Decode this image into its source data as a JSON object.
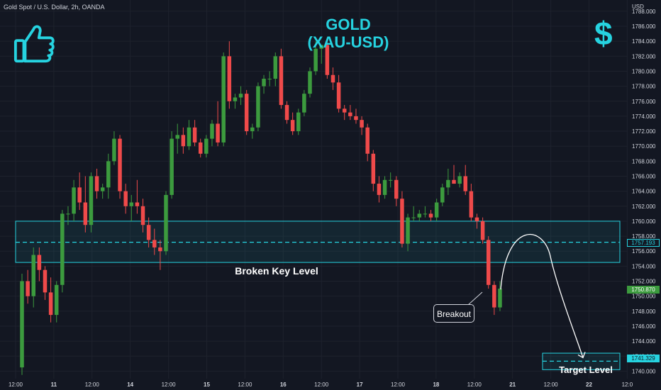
{
  "header": {
    "source": "Gold Spot / U.S. Dollar, 2h, OANDA",
    "currency": "USD"
  },
  "title": {
    "line1": "GOLD",
    "line2": "(XAU-USD)"
  },
  "icons": {
    "thumbs_up": "thumbs-up-icon",
    "dollar": "dollar-sign-icon",
    "dollar_glyph": "$"
  },
  "colors": {
    "up": "#3c9b3e",
    "down": "#ef4a4a",
    "accent": "#26d3e0",
    "background": "#131722",
    "grid": "#1e222d",
    "text": "#d1d4dc"
  },
  "annotations": {
    "broken_key_level": "Broken Key Level",
    "target_level": "Target Level",
    "breakout": "Breakout",
    "key_level_price": "1757.193",
    "last_price": "1750.870",
    "target_price": "1741.329"
  },
  "chart_data": {
    "type": "candlestick",
    "symbol": "XAU-USD",
    "timeframe": "2h",
    "ylim": [
      1739,
      1789.5
    ],
    "y_ticks": [
      1740,
      1742,
      1744,
      1746,
      1748,
      1750,
      1752,
      1754,
      1756,
      1758,
      1760,
      1762,
      1764,
      1766,
      1768,
      1770,
      1772,
      1774,
      1776,
      1778,
      1780,
      1782,
      1784,
      1786,
      1788
    ],
    "x_ticks": [
      "12:00",
      "11",
      "12:00",
      "14",
      "12:00",
      "15",
      "12:00",
      "16",
      "12:00",
      "17",
      "12:00",
      "18",
      "12:00",
      "21",
      "12:00",
      "22",
      "12:0"
    ],
    "zones": [
      {
        "name": "Broken Key Level",
        "low": 1754.5,
        "high": 1760.0,
        "midline": 1757.193
      },
      {
        "name": "Target Level",
        "low": 1740.2,
        "high": 1742.4,
        "midline": 1741.329
      }
    ],
    "projection": {
      "from_price": 1750.9,
      "peak_price": 1757.2,
      "to_price": 1741.8
    },
    "candles": [
      [
        1740.5,
        1753.0,
        1739.5,
        1752.0
      ],
      [
        1752.0,
        1753.5,
        1749.0,
        1750.0
      ],
      [
        1750.0,
        1756.5,
        1748.5,
        1755.5
      ],
      [
        1755.5,
        1756.5,
        1752.0,
        1753.5
      ],
      [
        1753.5,
        1754.0,
        1749.5,
        1750.5
      ],
      [
        1750.5,
        1752.5,
        1746.5,
        1747.5
      ],
      [
        1747.5,
        1752.0,
        1746.5,
        1751.5
      ],
      [
        1751.5,
        1761.5,
        1750.5,
        1761.0
      ],
      [
        1761.0,
        1762.0,
        1759.5,
        1761.0
      ],
      [
        1761.0,
        1765.5,
        1760.0,
        1764.5
      ],
      [
        1764.5,
        1766.5,
        1761.5,
        1762.5
      ],
      [
        1762.5,
        1766.0,
        1758.5,
        1759.5
      ],
      [
        1759.5,
        1766.5,
        1758.5,
        1766.0
      ],
      [
        1766.0,
        1767.0,
        1763.0,
        1764.0
      ],
      [
        1764.0,
        1765.0,
        1763.0,
        1764.5
      ],
      [
        1764.5,
        1769.0,
        1763.0,
        1768.0
      ],
      [
        1768.0,
        1772.0,
        1767.5,
        1771.0
      ],
      [
        1771.0,
        1771.5,
        1763.0,
        1764.0
      ],
      [
        1764.0,
        1765.0,
        1761.0,
        1762.0
      ],
      [
        1762.0,
        1763.5,
        1760.0,
        1762.5
      ],
      [
        1762.5,
        1765.5,
        1761.0,
        1762.0
      ],
      [
        1762.0,
        1763.0,
        1758.5,
        1759.5
      ],
      [
        1759.5,
        1760.5,
        1756.5,
        1757.5
      ],
      [
        1757.5,
        1759.0,
        1755.5,
        1756.5
      ],
      [
        1756.5,
        1757.5,
        1753.5,
        1756.0
      ],
      [
        1756.0,
        1764.0,
        1755.5,
        1763.5
      ],
      [
        1763.5,
        1772.0,
        1763.0,
        1771.0
      ],
      [
        1771.0,
        1773.0,
        1769.0,
        1771.5
      ],
      [
        1771.5,
        1772.5,
        1769.0,
        1770.0
      ],
      [
        1770.0,
        1773.5,
        1769.5,
        1772.5
      ],
      [
        1772.5,
        1773.5,
        1770.0,
        1770.5
      ],
      [
        1770.5,
        1771.0,
        1768.5,
        1769.0
      ],
      [
        1769.0,
        1771.5,
        1768.5,
        1771.0
      ],
      [
        1771.0,
        1773.5,
        1770.0,
        1773.0
      ],
      [
        1773.0,
        1776.0,
        1770.0,
        1770.5
      ],
      [
        1770.5,
        1782.5,
        1770.0,
        1782.0
      ],
      [
        1782.0,
        1784.0,
        1775.0,
        1776.0
      ],
      [
        1776.0,
        1777.0,
        1775.0,
        1776.5
      ],
      [
        1776.5,
        1778.0,
        1775.5,
        1777.0
      ],
      [
        1777.0,
        1777.5,
        1771.5,
        1772.0
      ],
      [
        1772.0,
        1773.0,
        1771.0,
        1772.5
      ],
      [
        1772.5,
        1778.5,
        1772.0,
        1778.0
      ],
      [
        1778.0,
        1779.5,
        1777.0,
        1779.0
      ],
      [
        1779.0,
        1780.0,
        1778.0,
        1779.0
      ],
      [
        1779.0,
        1782.5,
        1778.0,
        1782.0
      ],
      [
        1782.0,
        1783.0,
        1775.0,
        1775.5
      ],
      [
        1775.5,
        1776.0,
        1773.0,
        1773.5
      ],
      [
        1773.5,
        1774.5,
        1771.5,
        1772.0
      ],
      [
        1772.0,
        1775.0,
        1771.5,
        1774.5
      ],
      [
        1774.5,
        1777.5,
        1774.0,
        1777.0
      ],
      [
        1777.0,
        1780.5,
        1776.5,
        1780.0
      ],
      [
        1780.0,
        1784.0,
        1779.5,
        1783.0
      ],
      [
        1783.0,
        1783.5,
        1781.0,
        1783.5
      ],
      [
        1783.5,
        1784.0,
        1779.0,
        1779.5
      ],
      [
        1779.5,
        1780.5,
        1777.5,
        1778.5
      ],
      [
        1778.5,
        1779.5,
        1774.5,
        1775.0
      ],
      [
        1775.0,
        1775.5,
        1773.5,
        1774.5
      ],
      [
        1774.5,
        1775.5,
        1773.5,
        1774.0
      ],
      [
        1774.0,
        1775.0,
        1773.0,
        1773.5
      ],
      [
        1773.5,
        1774.0,
        1771.5,
        1772.5
      ],
      [
        1772.5,
        1773.0,
        1768.0,
        1769.0
      ],
      [
        1769.0,
        1769.5,
        1764.0,
        1765.0
      ],
      [
        1765.0,
        1766.0,
        1762.5,
        1763.5
      ],
      [
        1763.5,
        1766.0,
        1763.0,
        1765.5
      ],
      [
        1765.5,
        1766.5,
        1764.5,
        1765.5
      ],
      [
        1765.5,
        1766.0,
        1762.0,
        1763.0
      ],
      [
        1763.0,
        1764.0,
        1756.5,
        1757.0
      ],
      [
        1757.0,
        1761.0,
        1756.0,
        1760.5
      ],
      [
        1760.5,
        1762.0,
        1760.0,
        1760.5
      ],
      [
        1760.5,
        1761.5,
        1760.0,
        1761.0
      ],
      [
        1761.0,
        1762.0,
        1760.5,
        1761.0
      ],
      [
        1761.0,
        1761.5,
        1760.0,
        1760.5
      ],
      [
        1760.5,
        1763.0,
        1760.0,
        1762.5
      ],
      [
        1762.5,
        1765.0,
        1762.0,
        1764.5
      ],
      [
        1764.5,
        1767.0,
        1763.5,
        1765.5
      ],
      [
        1765.5,
        1767.5,
        1765.0,
        1765.0
      ],
      [
        1765.0,
        1766.5,
        1764.5,
        1766.0
      ],
      [
        1766.0,
        1767.5,
        1763.5,
        1764.0
      ],
      [
        1764.0,
        1765.0,
        1760.0,
        1760.5
      ],
      [
        1760.5,
        1761.0,
        1759.0,
        1760.0
      ],
      [
        1760.0,
        1760.5,
        1757.0,
        1757.5
      ],
      [
        1757.5,
        1758.0,
        1751.0,
        1751.5
      ],
      [
        1751.5,
        1752.0,
        1747.5,
        1748.5
      ],
      [
        1748.5,
        1752.0,
        1748.0,
        1751.0
      ]
    ]
  }
}
